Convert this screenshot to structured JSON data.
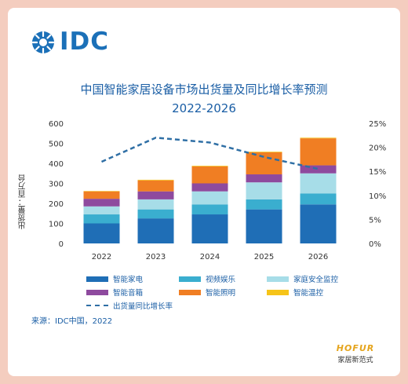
{
  "logo": {
    "text": "IDC"
  },
  "header": {
    "title_line1": "中国智能家居设备市场出货量及同比增长率预测",
    "title_line2": "2022-2026"
  },
  "source": "来源：IDC中国，2022",
  "brand": {
    "en": "HOFUR",
    "cn": "家居新范式"
  },
  "chart_data": {
    "type": "bar",
    "stacked": true,
    "title": "中国智能家居设备市场出货量及同比增长率预测 2022-2026",
    "ylabel": "出货量：百万台",
    "categories": [
      "2022",
      "2023",
      "2024",
      "2025",
      "2026"
    ],
    "ylim": [
      0,
      600
    ],
    "yticks": [
      "0",
      "100",
      "200",
      "300",
      "400",
      "500",
      "600"
    ],
    "y2lim": [
      0,
      25
    ],
    "y2ticks": [
      "0%",
      "5%",
      "10%",
      "15%",
      "20%",
      "25%"
    ],
    "series": [
      {
        "name": "智能家电",
        "color": "#1f6eb6",
        "values": [
          100,
          125,
          145,
          170,
          195
        ]
      },
      {
        "name": "视频娱乐",
        "color": "#3aaecf",
        "values": [
          45,
          45,
          50,
          50,
          55
        ]
      },
      {
        "name": "家庭安全监控",
        "color": "#a7dde8",
        "values": [
          40,
          50,
          65,
          85,
          100
        ]
      },
      {
        "name": "智能音箱",
        "color": "#8e4a9e",
        "values": [
          38,
          40,
          40,
          40,
          40
        ]
      },
      {
        "name": "智能照明",
        "color": "#f07e23",
        "values": [
          37,
          55,
          85,
          110,
          135
        ]
      },
      {
        "name": "智能温控",
        "color": "#f6c419",
        "values": [
          2,
          3,
          3,
          3,
          3
        ]
      }
    ],
    "line": {
      "name": "出货量同比增长率",
      "color": "#2f6fa5",
      "axis": "right",
      "values": [
        17,
        22,
        21,
        18,
        15.5
      ]
    },
    "legend_position": "bottom",
    "grid": false
  }
}
